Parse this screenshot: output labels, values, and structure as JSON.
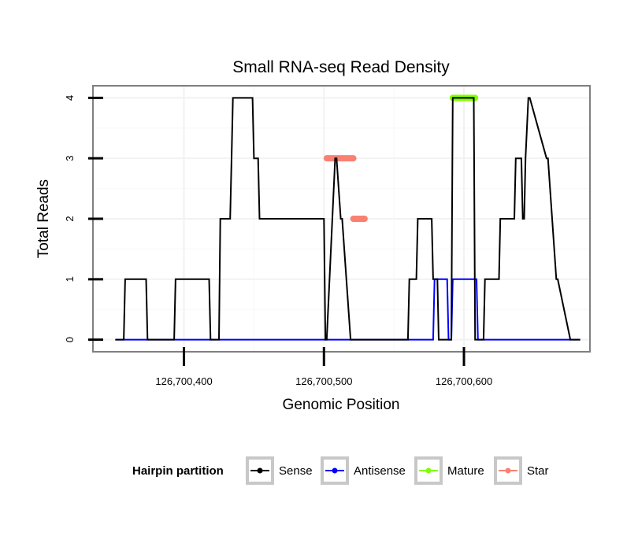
{
  "chart_data": {
    "type": "line",
    "title": "Small RNA-seq Read Density",
    "xlabel": "Genomic Position",
    "ylabel": "Total Reads",
    "xlim": [
      126700335,
      126700690
    ],
    "ylim": [
      -0.2,
      4.2
    ],
    "x_ticks": [
      126700400,
      126700500,
      126700600
    ],
    "x_tick_labels": [
      "126,700,400",
      "126,700,500",
      "126,700,600"
    ],
    "y_ticks": [
      0,
      1,
      2,
      3,
      4
    ],
    "y_tick_labels": [
      "0",
      "1",
      "2",
      "3",
      "4"
    ],
    "grid": true,
    "series": [
      {
        "name": "Sense",
        "color": "#000000",
        "x": [
          126700351,
          126700357,
          126700358,
          126700373,
          126700374,
          126700393,
          126700394,
          126700418,
          126700419,
          126700425,
          126700426,
          126700433,
          126700434,
          126700435,
          126700441,
          126700442,
          126700449,
          126700450,
          126700453,
          126700454,
          126700500,
          126700501,
          126700502,
          126700508,
          126700509,
          126700512,
          126700513,
          126700519,
          126700520,
          126700525,
          126700526,
          126700560,
          126700561,
          126700566,
          126700567,
          126700577,
          126700578,
          126700581,
          126700582,
          126700591,
          126700592,
          126700607,
          126700608,
          126700614,
          126700615,
          126700625,
          126700626,
          126700636,
          126700637,
          126700641,
          126700642,
          126700643,
          126700644,
          126700646,
          126700647,
          126700659,
          126700660,
          126700666,
          126700667,
          126700676,
          126700677,
          126700683
        ],
        "y": [
          0,
          0,
          1,
          1,
          0,
          0,
          1,
          1,
          0,
          0,
          2,
          2,
          3,
          4,
          4,
          4,
          4,
          3,
          3,
          2,
          2,
          0,
          0,
          3,
          3,
          2,
          2,
          0,
          0,
          0,
          0,
          0,
          1,
          1,
          2,
          2,
          1,
          1,
          0,
          0,
          4,
          4,
          0,
          0,
          1,
          1,
          2,
          2,
          3,
          3,
          2,
          2,
          3,
          4,
          4,
          3,
          3,
          1,
          1,
          0,
          0,
          0
        ]
      },
      {
        "name": "Antisense",
        "color": "#0000ff",
        "x": [
          126700351,
          126700578,
          126700579,
          126700588,
          126700589,
          126700591,
          126700592,
          126700609,
          126700610,
          126700683
        ],
        "y": [
          0,
          0,
          1,
          1,
          0,
          0,
          1,
          1,
          0,
          0
        ]
      }
    ],
    "annotations": [
      {
        "name": "Mature",
        "color": "#80ff00",
        "x_start": 126700592,
        "x_end": 126700608,
        "y": 4
      },
      {
        "name": "Star",
        "color": "#fa8072",
        "x_start": 126700502,
        "x_end": 126700521,
        "y": 3
      },
      {
        "name": "Star",
        "color": "#fa8072",
        "x_start": 126700521,
        "x_end": 126700529,
        "y": 2
      }
    ],
    "legend": {
      "title": "Hairpin partition",
      "position": "bottom",
      "entries": [
        {
          "label": "Sense",
          "color": "#000000"
        },
        {
          "label": "Antisense",
          "color": "#0000ff"
        },
        {
          "label": "Mature",
          "color": "#80ff00"
        },
        {
          "label": "Star",
          "color": "#fa8072"
        }
      ]
    }
  }
}
